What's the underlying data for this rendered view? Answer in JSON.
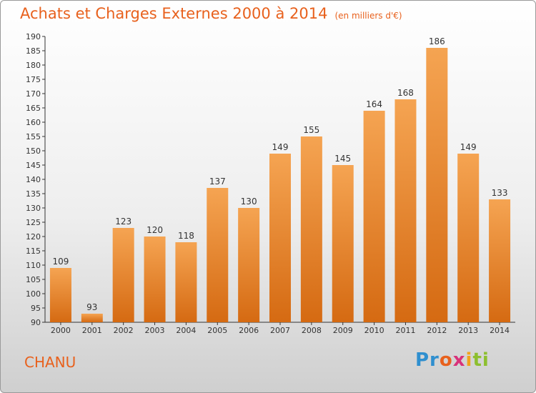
{
  "title": "Achats et Charges Externes 2000 à 2014",
  "subtitle": "(en milliers d'€)",
  "commune": "CHANU",
  "logo": {
    "p1": "Pr",
    "p2": "o",
    "p3": "x",
    "p4": "i",
    "p5": "ti"
  },
  "colors": {
    "bar_top": "#f5a452",
    "bar_bottom": "#d56a12",
    "title": "#e8611d",
    "axis": "#333333"
  },
  "chart_data": {
    "type": "bar",
    "title": "Achats et Charges Externes 2000 à 2014",
    "subtitle": "(en milliers d'€)",
    "categories": [
      "2000",
      "2001",
      "2002",
      "2003",
      "2004",
      "2005",
      "2006",
      "2007",
      "2008",
      "2009",
      "2010",
      "2011",
      "2012",
      "2013",
      "2014"
    ],
    "values": [
      109,
      93,
      123,
      120,
      118,
      137,
      130,
      149,
      155,
      145,
      164,
      168,
      186,
      149,
      133
    ],
    "ylim": [
      90,
      190
    ],
    "ytick_step": 5,
    "grid": false,
    "xlabel": "",
    "ylabel": ""
  }
}
